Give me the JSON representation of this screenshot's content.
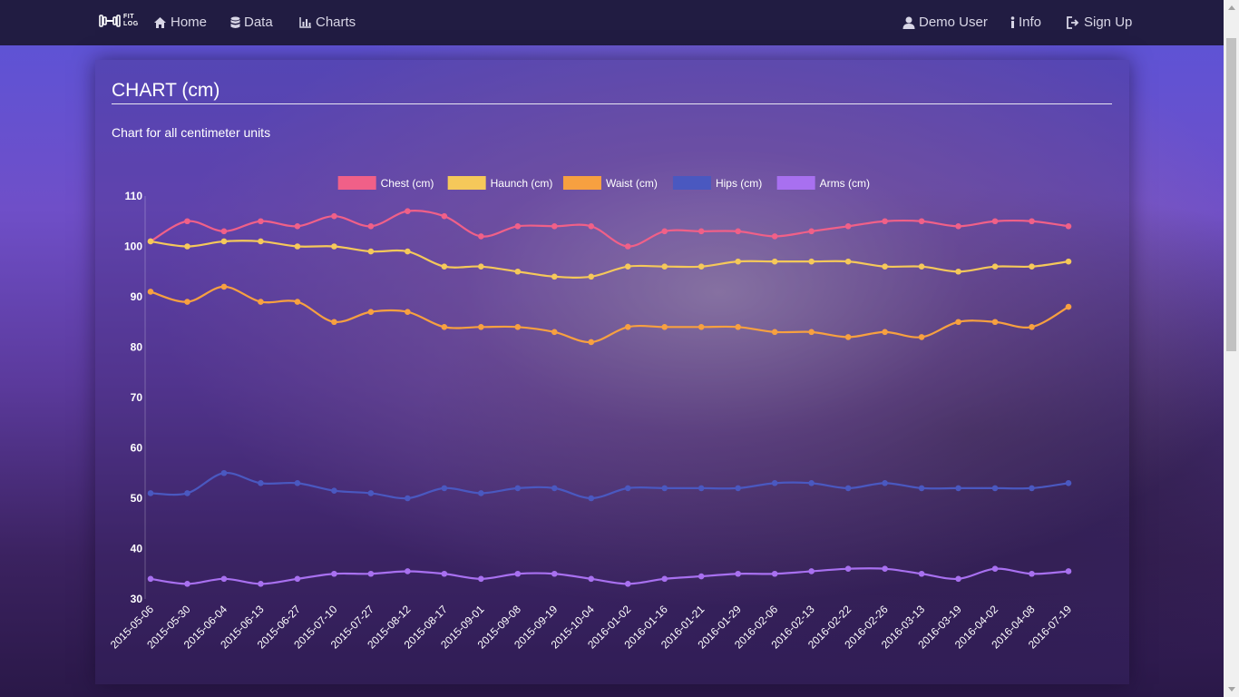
{
  "nav": {
    "brand_line1": "FIT",
    "brand_line2": "LOG",
    "home": "Home",
    "data": "Data",
    "charts": "Charts",
    "user": "Demo User",
    "info": "Info",
    "signup": "Sign Up"
  },
  "page": {
    "title": "CHART (cm)",
    "subtitle": "Chart for all centimeter units"
  },
  "chart_data": {
    "type": "line",
    "categories": [
      "2015-05-06",
      "2015-05-30",
      "2015-06-04",
      "2015-06-13",
      "2015-06-27",
      "2015-07-10",
      "2015-07-27",
      "2015-08-12",
      "2015-08-17",
      "2015-09-01",
      "2015-09-08",
      "2015-09-19",
      "2015-10-04",
      "2016-01-02",
      "2016-01-16",
      "2016-01-21",
      "2016-01-29",
      "2016-02-06",
      "2016-02-13",
      "2016-02-22",
      "2016-02-26",
      "2016-03-13",
      "2016-03-19",
      "2016-04-02",
      "2016-04-08",
      "2016-07-19"
    ],
    "series": [
      {
        "name": "Chest (cm)",
        "color": "#f06088",
        "values": [
          101,
          105,
          103,
          105,
          104,
          106,
          104,
          107,
          106,
          102,
          104,
          104,
          104,
          100,
          103,
          103,
          103,
          102,
          103,
          104,
          105,
          105,
          104,
          105,
          105,
          104
        ]
      },
      {
        "name": "Haunch (cm)",
        "color": "#f5c85a",
        "values": [
          101,
          100,
          101,
          101,
          100,
          100,
          99,
          99,
          96,
          96,
          95,
          94,
          94,
          96,
          96,
          96,
          97,
          97,
          97,
          97,
          96,
          96,
          95,
          96,
          96,
          97
        ]
      },
      {
        "name": "Waist (cm)",
        "color": "#f7a040",
        "values": [
          91,
          89,
          92,
          89,
          89,
          85,
          87,
          87,
          84,
          84,
          84,
          83,
          81,
          84,
          84,
          84,
          84,
          83,
          83,
          82,
          83,
          82,
          85,
          85,
          84,
          88
        ]
      },
      {
        "name": "Hips (cm)",
        "color": "#4a58c0",
        "values": [
          51,
          51,
          55,
          53,
          53,
          51.5,
          51,
          50,
          52,
          51,
          52,
          52,
          50,
          52,
          52,
          52,
          52,
          53,
          53,
          52,
          53,
          52,
          52,
          52,
          52,
          53
        ]
      },
      {
        "name": "Arms (cm)",
        "color": "#a870f0",
        "values": [
          34,
          33,
          34,
          33,
          34,
          35,
          35,
          35.5,
          35,
          34,
          35,
          35,
          34,
          33,
          34,
          34.5,
          35,
          35,
          35.5,
          36,
          36,
          35,
          34,
          36,
          35,
          35.5
        ]
      }
    ],
    "y_ticks": [
      "110",
      "100",
      "90",
      "80",
      "70",
      "60",
      "50",
      "40",
      "30"
    ],
    "ylim": [
      30,
      110
    ],
    "grid": false,
    "legend_position": "top"
  }
}
